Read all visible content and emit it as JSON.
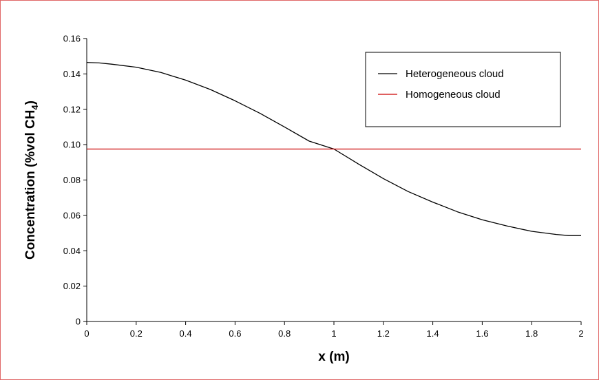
{
  "chart_data": {
    "type": "line",
    "title": "",
    "xlabel": "x (m)",
    "ylabel": {
      "main": "Concentration (%vol CH",
      "sub": "4",
      "close": ")"
    },
    "xlim": [
      0,
      2
    ],
    "ylim": [
      0,
      0.16
    ],
    "xticks": [
      "0",
      "0.2",
      "0.4",
      "0.6",
      "0.8",
      "1",
      "1.2",
      "1.4",
      "1.6",
      "1.8",
      "2"
    ],
    "yticks": [
      "0",
      "0.02",
      "0.04",
      "0.06",
      "0.08",
      "0.10",
      "0.12",
      "0.14",
      "0.16"
    ],
    "grid": false,
    "legend_position": "top-right",
    "series": [
      {
        "name": "Heterogeneous cloud",
        "color": "#000000",
        "x": [
          0,
          0.05,
          0.1,
          0.2,
          0.3,
          0.4,
          0.5,
          0.6,
          0.7,
          0.8,
          0.9,
          1.0,
          1.1,
          1.2,
          1.3,
          1.4,
          1.5,
          1.6,
          1.7,
          1.8,
          1.9,
          1.95,
          2.0
        ],
        "y": [
          0.1465,
          0.1462,
          0.1455,
          0.1438,
          0.1408,
          0.1365,
          0.1312,
          0.1248,
          0.1178,
          0.11,
          0.102,
          0.0975,
          0.089,
          0.0808,
          0.0735,
          0.0675,
          0.062,
          0.0575,
          0.054,
          0.051,
          0.0492,
          0.0486,
          0.0486
        ]
      },
      {
        "name": "Homogeneous cloud",
        "color": "#cc0000",
        "x": [
          0,
          2
        ],
        "y": [
          0.0975,
          0.0975
        ]
      }
    ]
  }
}
